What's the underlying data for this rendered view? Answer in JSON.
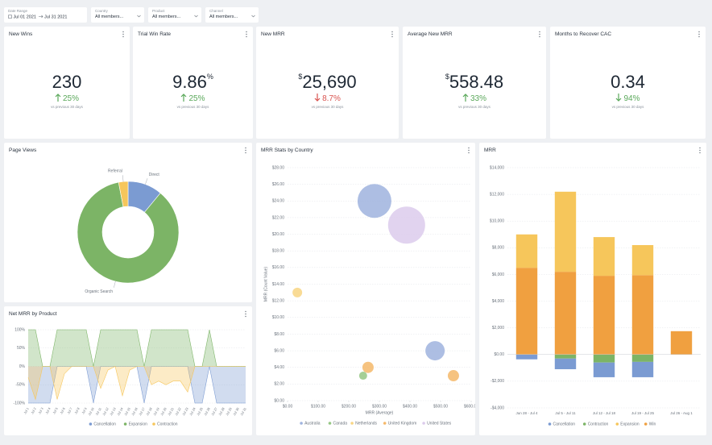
{
  "filters": [
    {
      "label": "Date Range",
      "value": "Jul 01 2021",
      "value2": "Jul 31 2021"
    },
    {
      "label": "Country",
      "value": "All members..."
    },
    {
      "label": "Product",
      "value": "All members..."
    },
    {
      "label": "Channel",
      "value": "All members..."
    }
  ],
  "kpis": [
    {
      "title": "New Wins",
      "value": "230",
      "change": "25%",
      "direction": "up",
      "change_color": "#5aa85a",
      "note": "vs previous 30 days"
    },
    {
      "title": "Trial Win Rate",
      "value": "9.86",
      "suffix": "%",
      "change": "25%",
      "direction": "up",
      "change_color": "#5aa85a",
      "note": "vs previous 30 days"
    },
    {
      "title": "New MRR",
      "prefix": "$",
      "value": "25,690",
      "change": "8.7%",
      "direction": "down",
      "change_color": "#d9534f",
      "note": "vs previous 30 days"
    },
    {
      "title": "Average New MRR",
      "prefix": "$",
      "value": "558.48",
      "change": "33%",
      "direction": "up",
      "change_color": "#5aa85a",
      "note": "vs previous 30 days"
    },
    {
      "title": "Months to Recover CAC",
      "value": "0.34",
      "change": "94%",
      "direction": "down",
      "change_color": "#5aa85a",
      "note": "vs previous 30 days"
    }
  ],
  "chart_data": [
    {
      "type": "pie",
      "title": "Page Views",
      "donut": true,
      "categories": [
        "Direct",
        "Organic Search",
        "Referral"
      ],
      "values": [
        11,
        86,
        3
      ],
      "colors": [
        "#7b9bd2",
        "#7cb466",
        "#f6c65b"
      ]
    },
    {
      "type": "area",
      "title": "Net MRR by Product",
      "categories": [
        "Jul 1",
        "Jul 2",
        "Jul 3",
        "Jul 4",
        "Jul 5",
        "Jul 6",
        "Jul 7",
        "Jul 8",
        "Jul 9",
        "Jul 10",
        "Jul 11",
        "Jul 12",
        "Jul 13",
        "Jul 14",
        "Jul 15",
        "Jul 16",
        "Jul 17",
        "Jul 18",
        "Jul 19",
        "Jul 20",
        "Jul 21",
        "Jul 22",
        "Jul 23",
        "Jul 24",
        "Jul 25",
        "Jul 26",
        "Jul 27",
        "Jul 28",
        "Jul 29",
        "Jul 30",
        "Jul 31"
      ],
      "series": [
        {
          "name": "Cancellation",
          "color": "#7b9bd2",
          "values": [
            -100,
            -100,
            -100,
            -100,
            0,
            0,
            0,
            0,
            0,
            -100,
            0,
            0,
            0,
            0,
            0,
            0,
            -100,
            0,
            0,
            0,
            0,
            0,
            0,
            -100,
            -100,
            0,
            -100,
            -100,
            -100,
            -100,
            -100
          ]
        },
        {
          "name": "Expansion",
          "color": "#7cb466",
          "values": [
            100,
            100,
            0,
            0,
            100,
            100,
            100,
            100,
            100,
            0,
            100,
            100,
            100,
            100,
            100,
            100,
            0,
            100,
            100,
            100,
            100,
            100,
            100,
            0,
            0,
            100,
            0,
            0,
            0,
            0,
            0
          ]
        },
        {
          "name": "Contraction",
          "color": "#f6c65b",
          "values": [
            -30,
            -90,
            0,
            0,
            -90,
            -20,
            0,
            0,
            0,
            0,
            -60,
            -10,
            0,
            -80,
            -10,
            0,
            0,
            -50,
            -40,
            -50,
            -40,
            -40,
            -70,
            0,
            0,
            0,
            0,
            0,
            0,
            0,
            0
          ]
        }
      ],
      "ylim": [
        -100,
        100
      ],
      "yticks": [
        {
          "value": -100,
          "label": "-100%"
        },
        {
          "value": -50,
          "label": "-50%"
        },
        {
          "value": 0,
          "label": "0%"
        },
        {
          "value": 50,
          "label": "50%"
        },
        {
          "value": 100,
          "label": "100%"
        }
      ],
      "grid": true
    },
    {
      "type": "scatter",
      "title": "MRR Stats by Country",
      "x_label": "MRR (Average)",
      "y_label": "MRR (Count Value)",
      "series": [
        {
          "name": "Australia",
          "color": "#9fb3de",
          "x": [
            284,
            482
          ],
          "values": [
            24.0,
            6.0
          ],
          "sizes": [
            21,
            12
          ]
        },
        {
          "name": "Canada",
          "color": "#95c784",
          "x": [
            247
          ],
          "values": [
            3.0
          ],
          "sizes": [
            5
          ]
        },
        {
          "name": "Netherlands",
          "color": "#f8d583",
          "x": [
            32
          ],
          "values": [
            13.0
          ],
          "sizes": [
            6
          ]
        },
        {
          "name": "United Kingdom",
          "color": "#f5b86a",
          "x": [
            263,
            542
          ],
          "values": [
            4.0,
            3.0
          ],
          "sizes": [
            7,
            7
          ]
        },
        {
          "name": "United States",
          "color": "#dccbec",
          "x": [
            389
          ],
          "values": [
            21.1
          ],
          "sizes": [
            23
          ]
        }
      ],
      "xlim": [
        0,
        600
      ],
      "xticks": [
        {
          "value": 0,
          "label": "$0.00"
        },
        {
          "value": 100,
          "label": "$100.00"
        },
        {
          "value": 200,
          "label": "$200.00"
        },
        {
          "value": 300,
          "label": "$300.00"
        },
        {
          "value": 400,
          "label": "$400.00"
        },
        {
          "value": 500,
          "label": "$500.00"
        },
        {
          "value": 600,
          "label": "$600.00"
        }
      ],
      "ylim": [
        0,
        28
      ],
      "yticks": [
        {
          "value": 0,
          "label": "$0.00"
        },
        {
          "value": 2,
          "label": "$2.00"
        },
        {
          "value": 4,
          "label": "$4.00"
        },
        {
          "value": 6,
          "label": "$6.00"
        },
        {
          "value": 8,
          "label": "$8.00"
        },
        {
          "value": 10,
          "label": "$10.00"
        },
        {
          "value": 12,
          "label": "$12.00"
        },
        {
          "value": 14,
          "label": "$14.00"
        },
        {
          "value": 16,
          "label": "$16.00"
        },
        {
          "value": 18,
          "label": "$18.00"
        },
        {
          "value": 20,
          "label": "$20.00"
        },
        {
          "value": 22,
          "label": "$22.00"
        },
        {
          "value": 24,
          "label": "$24.00"
        },
        {
          "value": 26,
          "label": "$26.00"
        },
        {
          "value": 28,
          "label": "$28.00"
        }
      ],
      "grid": true
    },
    {
      "type": "bar",
      "title": "MRR",
      "stacked": true,
      "categories": [
        "Jun 28 - Jul 4",
        "Jul 5 - Jul 11",
        "Jul 12 - Jul 18",
        "Jul 19 - Jul 25",
        "Jul 26 - Aug 1"
      ],
      "series": [
        {
          "name": "Cancellation",
          "color": "#7b9bd2",
          "values": [
            -360,
            -800,
            -1100,
            -1150,
            0
          ]
        },
        {
          "name": "Contraction",
          "color": "#7cb466",
          "values": [
            0,
            -300,
            -600,
            -550,
            0
          ]
        },
        {
          "name": "Expansion",
          "color": "#f6c65b",
          "values": [
            2500,
            6000,
            2900,
            2250,
            0
          ]
        },
        {
          "name": "Win",
          "color": "#f0a040",
          "values": [
            6500,
            6200,
            5900,
            5950,
            1750
          ]
        }
      ],
      "ylim": [
        -4000,
        14000
      ],
      "yticks": [
        {
          "value": -4000,
          "label": "-$4,000"
        },
        {
          "value": -2000,
          "label": "-$2,000"
        },
        {
          "value": 0,
          "label": "$0.00"
        },
        {
          "value": 2000,
          "label": "$2,000"
        },
        {
          "value": 4000,
          "label": "$4,000"
        },
        {
          "value": 6000,
          "label": "$6,000"
        },
        {
          "value": 8000,
          "label": "$8,000"
        },
        {
          "value": 10000,
          "label": "$10,000"
        },
        {
          "value": 12000,
          "label": "$12,000"
        },
        {
          "value": 14000,
          "label": "$14,000"
        }
      ],
      "grid": true
    }
  ]
}
